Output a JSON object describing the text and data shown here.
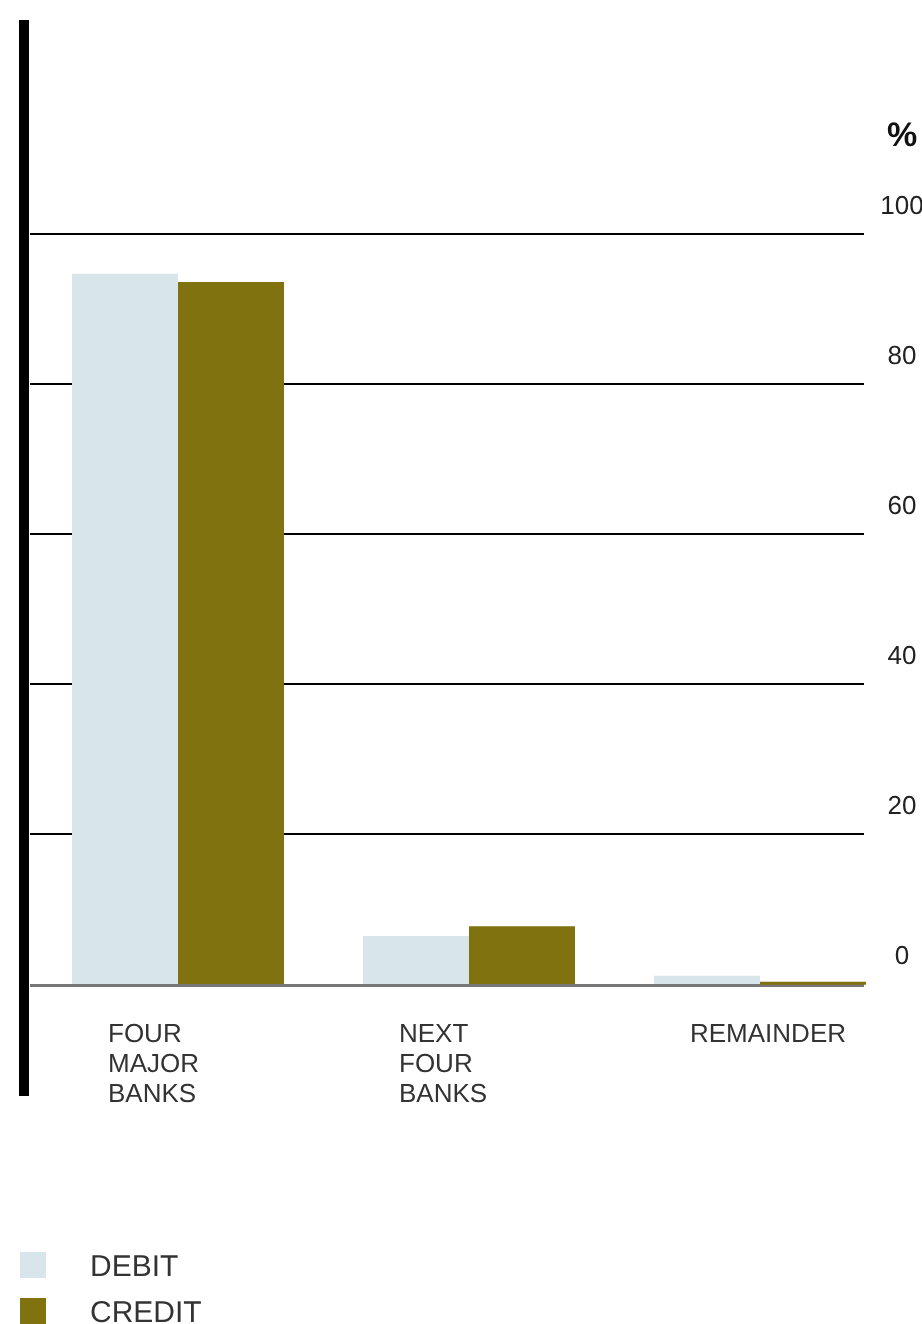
{
  "chart_data": {
    "type": "bar",
    "ylabel": "%",
    "categories": [
      "FOUR MAJOR BANKS",
      "NEXT FOUR BANKS",
      "REMAINDER"
    ],
    "series": [
      {
        "name": "DEBIT",
        "color": "#d8e6ec",
        "values": [
          94.7,
          6.4,
          1.1
        ]
      },
      {
        "name": "CREDIT",
        "color": "#7f720f",
        "values": [
          93.6,
          7.7,
          0.3
        ]
      }
    ],
    "ylim": [
      0,
      100
    ],
    "yticks": [
      0,
      20,
      40,
      60,
      80,
      100
    ],
    "grid": "y",
    "legend": "bottom left"
  }
}
